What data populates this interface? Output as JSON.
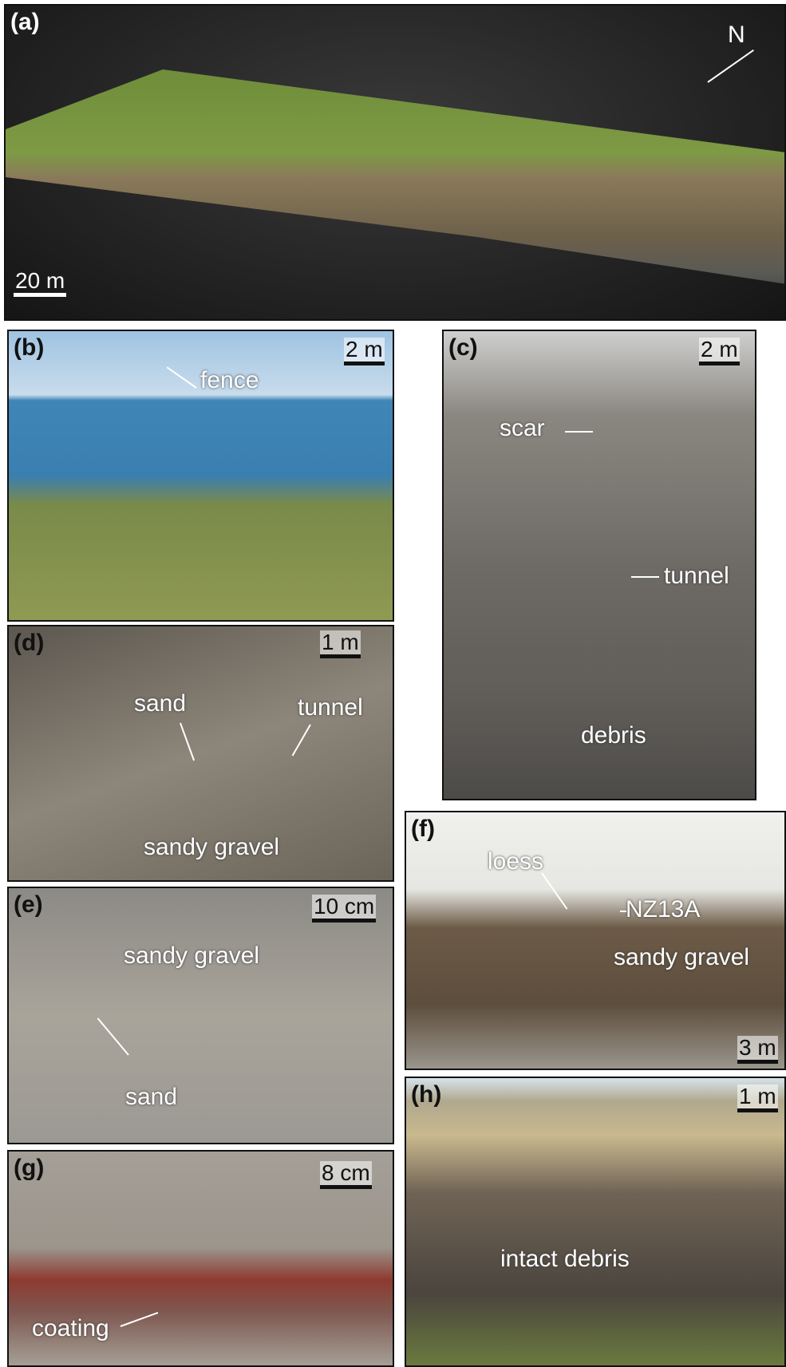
{
  "panels": [
    {
      "label": "(a)",
      "scale": "20 m",
      "annotations": [
        "N"
      ]
    },
    {
      "label": "(b)",
      "scale": "2 m",
      "annotations": [
        "fence"
      ]
    },
    {
      "label": "(c)",
      "scale": "2 m",
      "annotations": [
        "scar",
        "tunnel",
        "debris"
      ]
    },
    {
      "label": "(d)",
      "scale": "1 m",
      "annotations": [
        "sand",
        "tunnel",
        "sandy gravel"
      ]
    },
    {
      "label": "(e)",
      "scale": "10 cm",
      "annotations": [
        "sandy gravel",
        "sand"
      ]
    },
    {
      "label": "(f)",
      "scale": "3 m",
      "annotations": [
        "loess",
        "NZ13A",
        "sandy gravel"
      ]
    },
    {
      "label": "(g)",
      "scale": "8 cm",
      "annotations": [
        "coating"
      ]
    },
    {
      "label": "(h)",
      "scale": "1 m",
      "annotations": [
        "intact debris"
      ]
    }
  ]
}
